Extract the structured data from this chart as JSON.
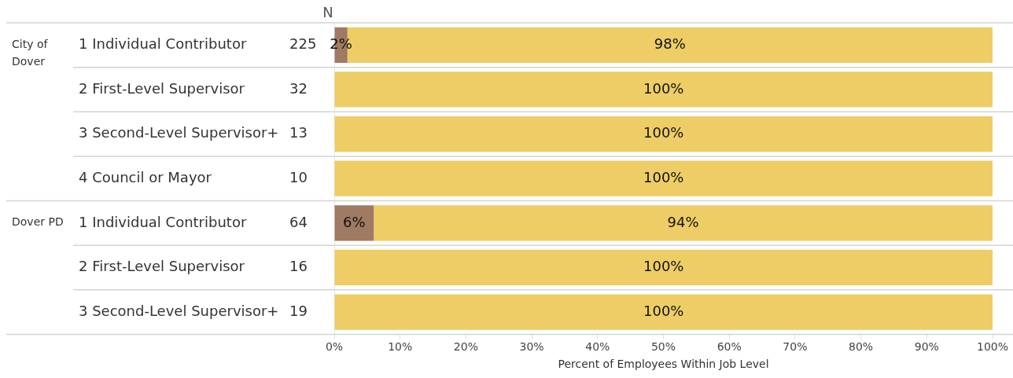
{
  "chart_data": {
    "type": "bar",
    "orientation": "horizontal",
    "stacked": true,
    "xlabel": "Percent of Employees Within Job Level",
    "categories": [
      "1 Individual Contributor",
      "2 First-Level Supervisor",
      "3 Second-Level Supervisor+",
      "4 Council or Mayor",
      "1 Individual Contributor",
      "2 First-Level Supervisor",
      "3 Second-Level Supervisor+"
    ],
    "series": [
      {
        "color": "#a07a62",
        "values": [
          2,
          0,
          0,
          0,
          6,
          0,
          0
        ],
        "value_labels": [
          "2%",
          null,
          null,
          null,
          "6%",
          null,
          null
        ]
      },
      {
        "color": "#eecd66",
        "values": [
          98,
          100,
          100,
          100,
          94,
          100,
          100
        ],
        "value_labels": [
          "98%",
          "100%",
          "100%",
          "100%",
          "94%",
          "100%",
          "100%"
        ]
      }
    ],
    "xlim": [
      0,
      100
    ],
    "xticks": [
      {
        "value": 0,
        "label": "0%"
      },
      {
        "value": 10,
        "label": "10%"
      },
      {
        "value": 20,
        "label": "20%"
      },
      {
        "value": 30,
        "label": "30%"
      },
      {
        "value": 40,
        "label": "40%"
      },
      {
        "value": 50,
        "label": "50%"
      },
      {
        "value": 60,
        "label": "60%"
      },
      {
        "value": 70,
        "label": "70%"
      },
      {
        "value": 80,
        "label": "80%"
      },
      {
        "value": 90,
        "label": "90%"
      },
      {
        "value": 100,
        "label": "100%"
      }
    ],
    "annotations": [
      "N",
      "225",
      "32",
      "13",
      "10",
      "64",
      "16",
      "19",
      "City of\nDover",
      "Dover PD"
    ],
    "grid": false,
    "legend": false
  }
}
